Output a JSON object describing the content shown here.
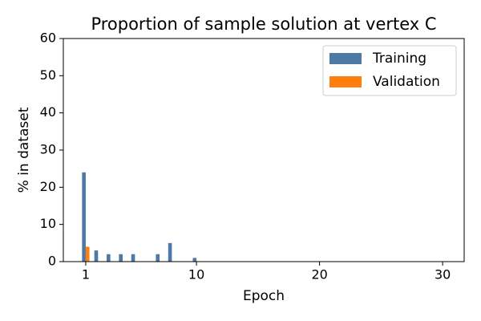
{
  "chart_data": {
    "type": "bar",
    "title": "Proportion of sample solution at vertex C",
    "x_label": "Epoch",
    "y_label": "% in dataset",
    "x": [
      1,
      2,
      3,
      4,
      5,
      6,
      7,
      8,
      9,
      10,
      11,
      12,
      13,
      14,
      15,
      16,
      17,
      18,
      19,
      20,
      21,
      22,
      23,
      24,
      25,
      26,
      27,
      28,
      29,
      30
    ],
    "series": [
      {
        "name": "Training",
        "color": "#4e79a7",
        "values": [
          24,
          3,
          2,
          2,
          2,
          0,
          2,
          5,
          0,
          1,
          0,
          0,
          0,
          0,
          0,
          0,
          0,
          0,
          0,
          0,
          0,
          0,
          0,
          0,
          0,
          0,
          0,
          0,
          0,
          0
        ]
      },
      {
        "name": "Validation",
        "color": "#ff7f0e",
        "values": [
          4,
          0,
          0,
          0,
          0,
          0,
          0,
          0,
          0,
          0,
          0,
          0,
          0,
          0,
          0,
          0,
          0,
          0,
          0,
          0,
          0,
          0,
          0,
          0,
          0,
          0,
          0,
          0,
          0,
          0
        ]
      }
    ],
    "xlim": [
      -0.82,
      31.75
    ],
    "xticks": [
      1,
      10,
      20,
      30
    ],
    "ylim": [
      0,
      60
    ],
    "yticks": [
      0,
      10,
      20,
      30,
      40,
      50,
      60
    ],
    "legend": "upper right"
  }
}
